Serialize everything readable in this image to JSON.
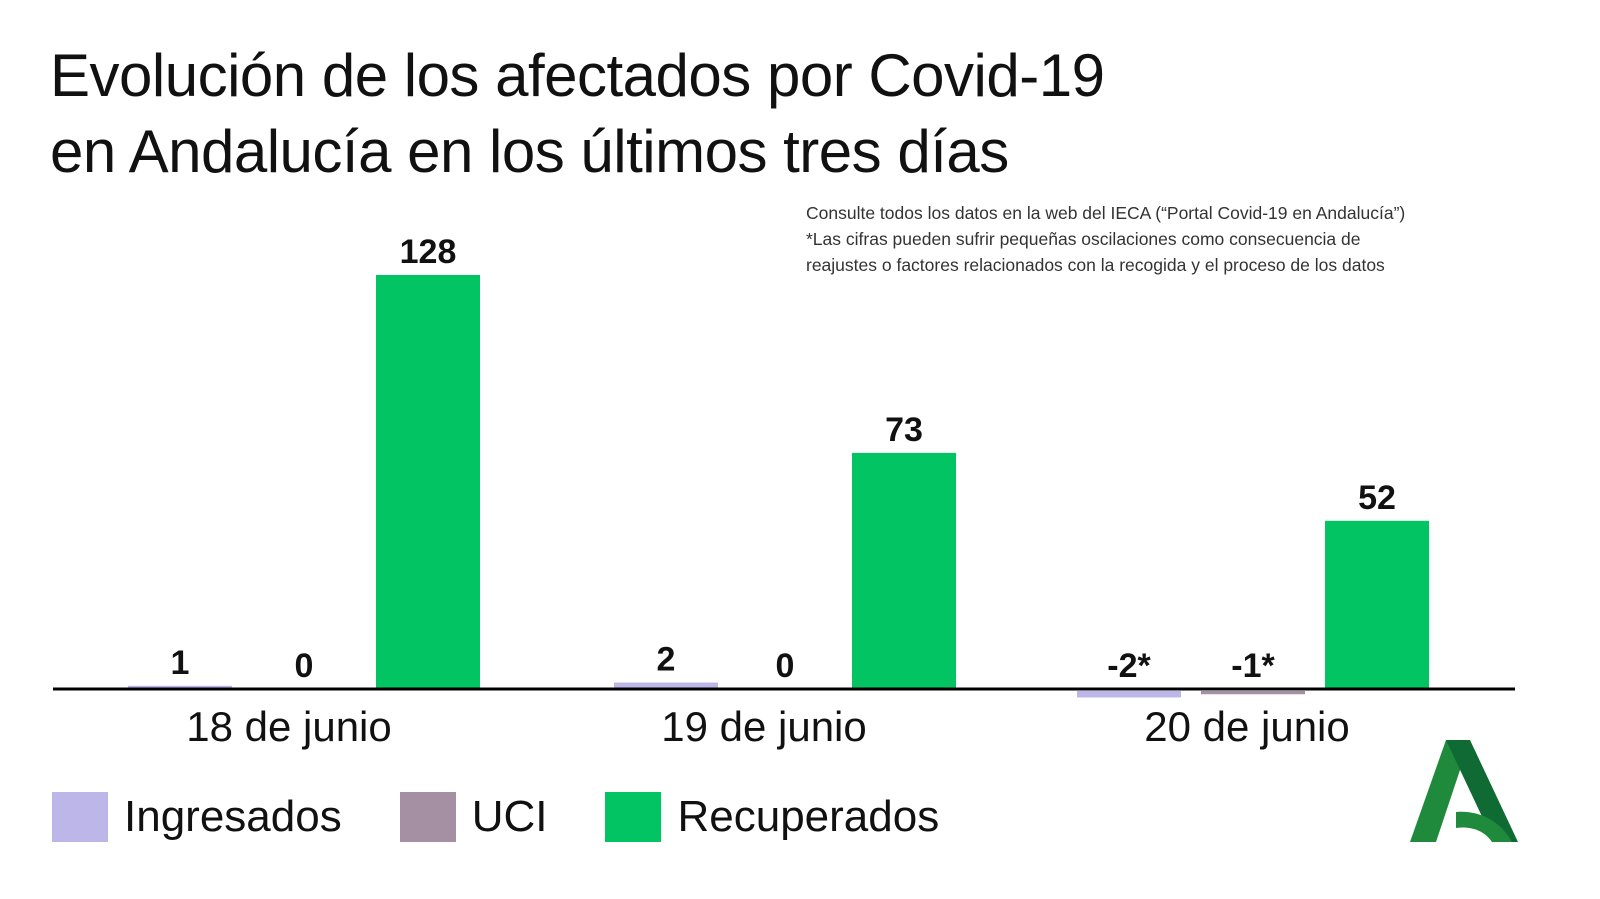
{
  "chart_data": {
    "type": "bar",
    "title": "Evolución de los afectados por Covid-19 en Andalucía en los últimos tres días",
    "title_lines": [
      "Evolución de los afectados por Covid-19",
      "en Andalucía en los últimos tres días"
    ],
    "notes": [
      "Consulte todos los datos en la web del IECA (“Portal Covid-19 en Andalucía”)",
      "*Las cifras pueden sufrir pequeñas oscilaciones como consecuencia de",
      "reajustes o factores relacionados con la recogida y el proceso de los datos"
    ],
    "categories": [
      "18 de junio",
      "19 de junio",
      "20 de junio"
    ],
    "series": [
      {
        "name": "Ingresados",
        "color": "#bdb6e8",
        "values": [
          1,
          2,
          -2
        ],
        "labels": [
          "1",
          "2",
          "-2*"
        ]
      },
      {
        "name": "UCI",
        "color": "#a48fa3",
        "values": [
          0,
          0,
          -1
        ],
        "labels": [
          "0",
          "0",
          "-1*"
        ]
      },
      {
        "name": "Recuperados",
        "color": "#03c462",
        "values": [
          128,
          73,
          52
        ],
        "labels": [
          "128",
          "73",
          "52"
        ]
      }
    ],
    "xlabel": "",
    "ylabel": "",
    "ylim": [
      -2,
      128
    ],
    "grid": false,
    "legend": "bottom-left"
  },
  "logo": {
    "name": "Junta de Andalucía",
    "colors": [
      "#1f8a3b",
      "#0f6b33"
    ]
  }
}
